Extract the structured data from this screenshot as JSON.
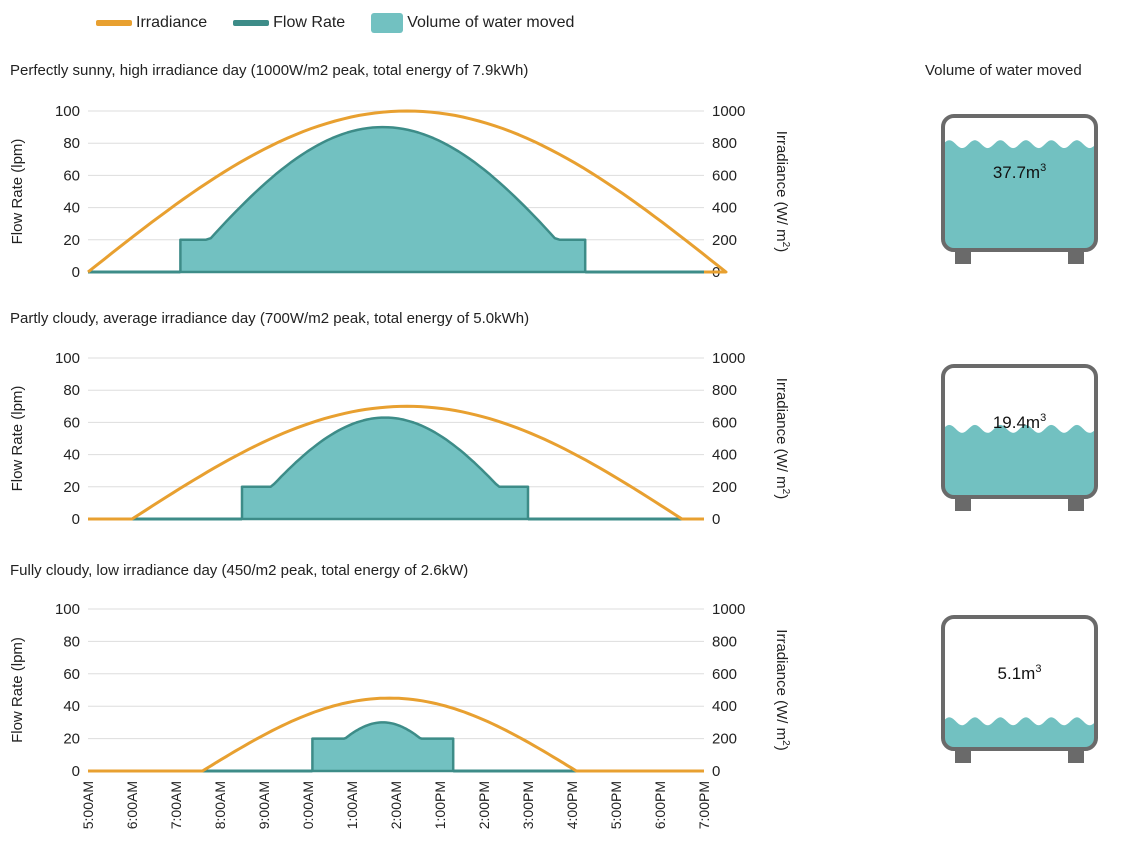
{
  "legend": {
    "irradiance": "Irradiance",
    "flow_rate": "Flow Rate",
    "volume": "Volume of water moved"
  },
  "tank_title": "Volume of water moved",
  "colors": {
    "irradiance": "#e8a030",
    "flow_rate": "#3d8c88",
    "volume_fill": "#72c1c1",
    "tank_outline": "#6a6a6a",
    "grid": "#dddddd"
  },
  "chart_data": [
    {
      "type": "area",
      "title": "Perfectly sunny, high irradiance day (1000W/m2 peak, total energy of 7.9kWh)",
      "ylabel": "Flow Rate (lpm)",
      "y2label": "Irradiance (W/ m",
      "y2label_sup": "2",
      "y2label_end": ")",
      "ylim": [
        0,
        100
      ],
      "y2lim": [
        0,
        1000
      ],
      "yticks": [
        "0",
        "20",
        "40",
        "60",
        "80",
        "100"
      ],
      "y2ticks": [
        "0",
        "200",
        "400",
        "600",
        "800",
        "1000"
      ],
      "x_labels": [],
      "series": [
        {
          "name": "Irradiance",
          "kind": "line",
          "start": 0,
          "end": 14.5,
          "peak": 1000
        },
        {
          "name": "Flow Rate",
          "kind": "area",
          "start": 2.1,
          "end": 11.3,
          "peak": 90
        }
      ],
      "volume": {
        "value": "37.7m",
        "sup": "3",
        "fill_fraction": 0.79
      }
    },
    {
      "type": "area",
      "title": "Partly cloudy, average irradiance day (700W/m2 peak, total energy of 5.0kWh)",
      "ylabel": "Flow Rate (lpm)",
      "y2label": "Irradiance (W/ m",
      "y2label_sup": "2",
      "y2label_end": ")",
      "ylim": [
        0,
        100
      ],
      "y2lim": [
        0,
        1000
      ],
      "yticks": [
        "0",
        "20",
        "40",
        "60",
        "80",
        "100"
      ],
      "y2ticks": [
        "0",
        "200",
        "400",
        "600",
        "800",
        "1000"
      ],
      "x_labels": [],
      "series": [
        {
          "name": "Irradiance",
          "kind": "line",
          "start": 1.0,
          "end": 13.5,
          "peak": 700
        },
        {
          "name": "Flow Rate",
          "kind": "area",
          "start": 3.5,
          "end": 10.0,
          "peak": 63
        }
      ],
      "volume": {
        "value": "19.4m",
        "sup": "3",
        "fill_fraction": 0.52
      }
    },
    {
      "type": "area",
      "title": "Fully cloudy, low irradiance day (450/m2 peak, total energy of 2.6kW)",
      "ylabel": "Flow Rate (lpm)",
      "y2label": "Irradiance (W/ m",
      "y2label_sup": "2",
      "y2label_end": ")",
      "ylim": [
        0,
        100
      ],
      "y2lim": [
        0,
        1000
      ],
      "yticks": [
        "0",
        "20",
        "40",
        "60",
        "80",
        "100"
      ],
      "y2ticks": [
        "0",
        "200",
        "400",
        "600",
        "800",
        "1000"
      ],
      "x_labels": [
        "5:00AM",
        "6:00AM",
        "7:00AM",
        "8:00AM",
        "9:00AM",
        "0:00AM",
        "1:00AM",
        "2:00AM",
        "1:00PM",
        "2:00PM",
        "3:00PM",
        "4:00PM",
        "5:00PM",
        "6:00PM",
        "7:00PM"
      ],
      "series": [
        {
          "name": "Irradiance",
          "kind": "line",
          "start": 2.6,
          "end": 11.1,
          "peak": 450
        },
        {
          "name": "Flow Rate",
          "kind": "area",
          "start": 5.1,
          "end": 8.3,
          "peak": 30
        }
      ],
      "volume": {
        "value": "5.1m",
        "sup": "3",
        "fill_fraction": 0.21
      }
    }
  ]
}
